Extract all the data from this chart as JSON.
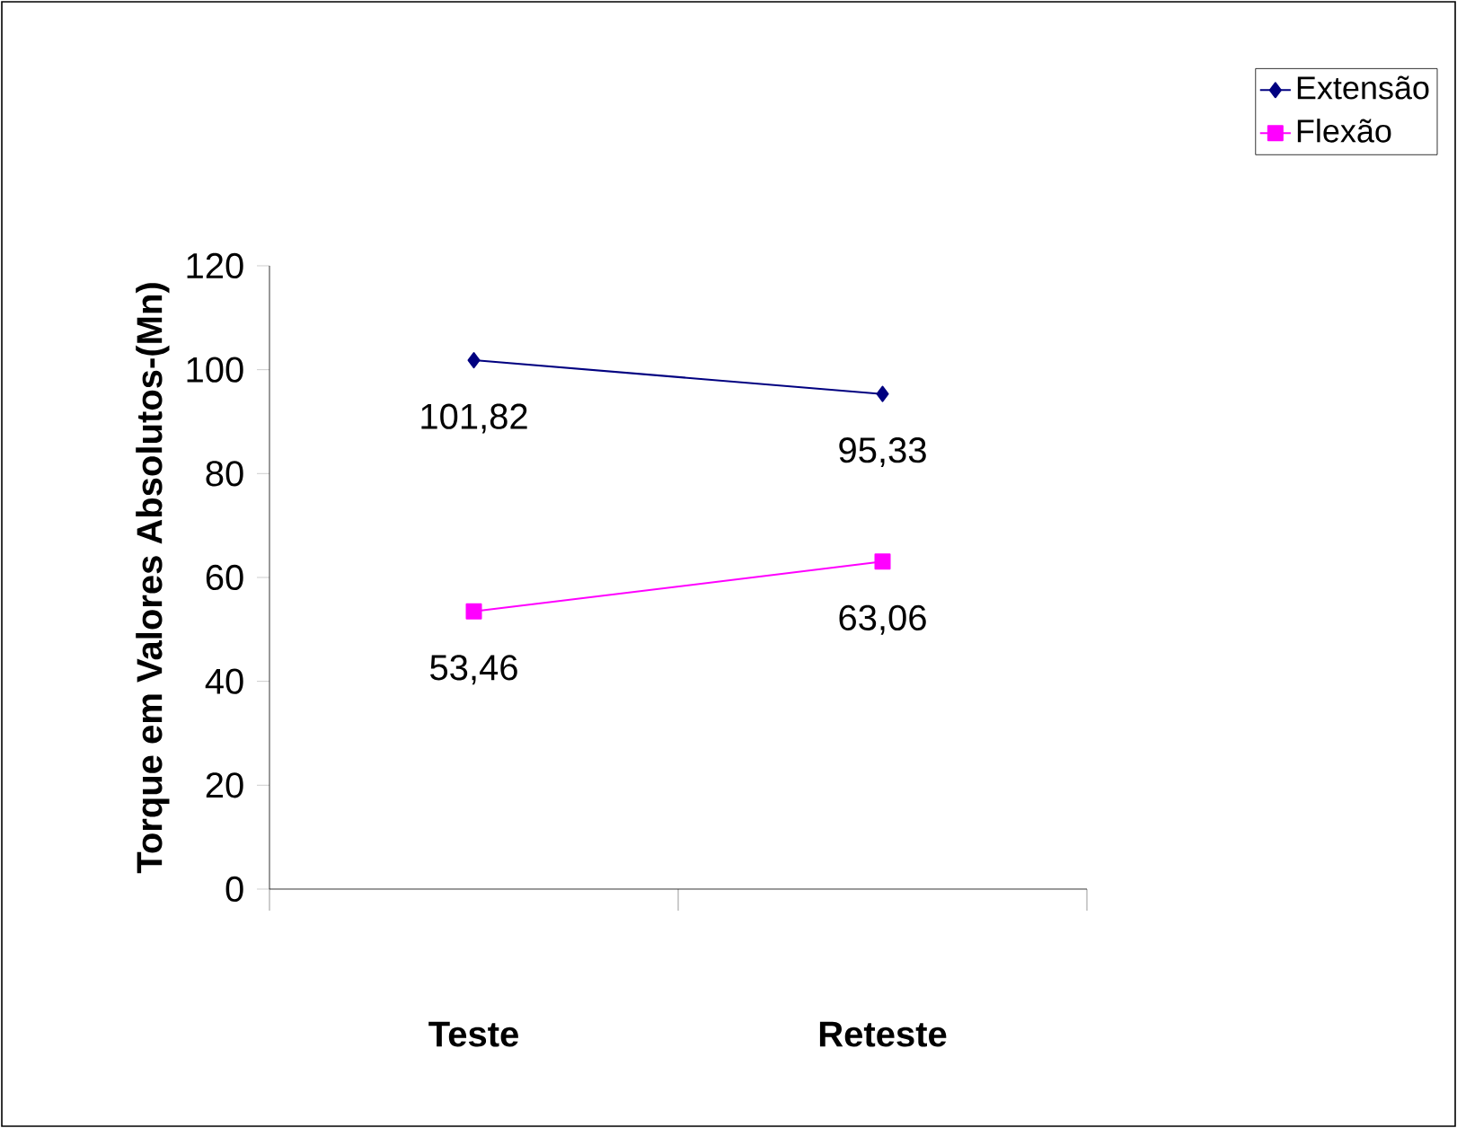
{
  "chart_data": {
    "type": "line",
    "ylabel": "Torque em Valores Absolutos-(Mn)",
    "categories": [
      "Teste",
      "Reteste"
    ],
    "series": [
      {
        "name": "Extensão",
        "color": "#000080",
        "marker": "diamond",
        "values": [
          101.82,
          95.33
        ],
        "value_labels": [
          "101,82",
          "95,33"
        ]
      },
      {
        "name": "Flexão",
        "color": "#ff00ff",
        "marker": "square",
        "values": [
          53.46,
          63.06
        ],
        "value_labels": [
          "53,46",
          "63,06"
        ]
      }
    ],
    "ylim": [
      0,
      120
    ],
    "yticks": [
      0,
      20,
      40,
      60,
      80,
      100,
      120
    ],
    "legend": "top right",
    "grid": false
  }
}
